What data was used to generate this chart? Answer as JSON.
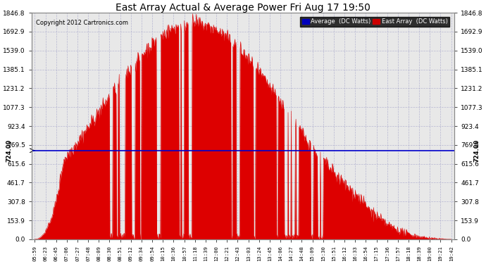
{
  "title": "East Array Actual & Average Power Fri Aug 17 19:50",
  "copyright": "Copyright 2012 Cartronics.com",
  "legend_avg": "Average  (DC Watts)",
  "legend_east": "East Array  (DC Watts)",
  "avg_value": 724.0,
  "avg_label": "724.00",
  "ylim": [
    0,
    1846.8
  ],
  "yticks": [
    0.0,
    153.9,
    307.8,
    461.7,
    615.6,
    769.5,
    923.4,
    1077.3,
    1231.2,
    1385.1,
    1539.0,
    1692.9,
    1846.8
  ],
  "ytick_labels": [
    "0.0",
    "153.9",
    "307.8",
    "461.7",
    "615.6",
    "769.5",
    "923.4",
    "1077.3",
    "1231.2",
    "1385.1",
    "1539.0",
    "1692.9",
    "1846.8"
  ],
  "bg_color": "#ffffff",
  "plot_bg": "#e8e8e8",
  "grid_color": "#aaaacc",
  "area_color": "#dd0000",
  "avg_line_color": "#0000cc",
  "title_color": "#000000",
  "tick_color": "#000000",
  "xtick_labels": [
    "05:59",
    "06:23",
    "06:45",
    "07:06",
    "07:27",
    "07:48",
    "08:09",
    "08:30",
    "08:51",
    "09:12",
    "09:34",
    "09:54",
    "10:15",
    "10:36",
    "10:57",
    "11:18",
    "11:39",
    "12:00",
    "12:21",
    "12:43",
    "13:03",
    "13:24",
    "13:45",
    "14:06",
    "14:27",
    "14:48",
    "15:09",
    "15:30",
    "15:51",
    "16:12",
    "16:33",
    "16:54",
    "17:15",
    "17:36",
    "17:57",
    "18:18",
    "18:39",
    "19:00",
    "19:21",
    "19:42"
  ],
  "figsize": [
    6.9,
    3.75
  ],
  "dpi": 100
}
